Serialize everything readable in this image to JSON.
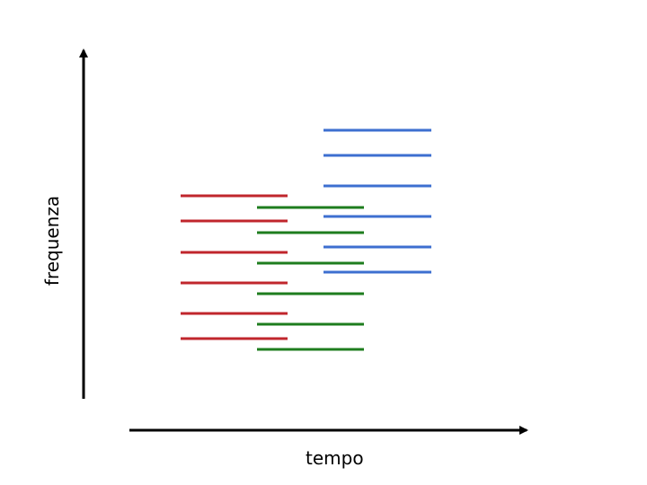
{
  "axes": {
    "x_label": "tempo",
    "y_label": "frequenza",
    "axis_color": "#000000"
  },
  "series": [
    {
      "color": "#c0262c",
      "segment_count": 6
    },
    {
      "color": "#1e7d1e",
      "segment_count": 6
    },
    {
      "color": "#3d6fd0",
      "segment_count": 6
    }
  ]
}
